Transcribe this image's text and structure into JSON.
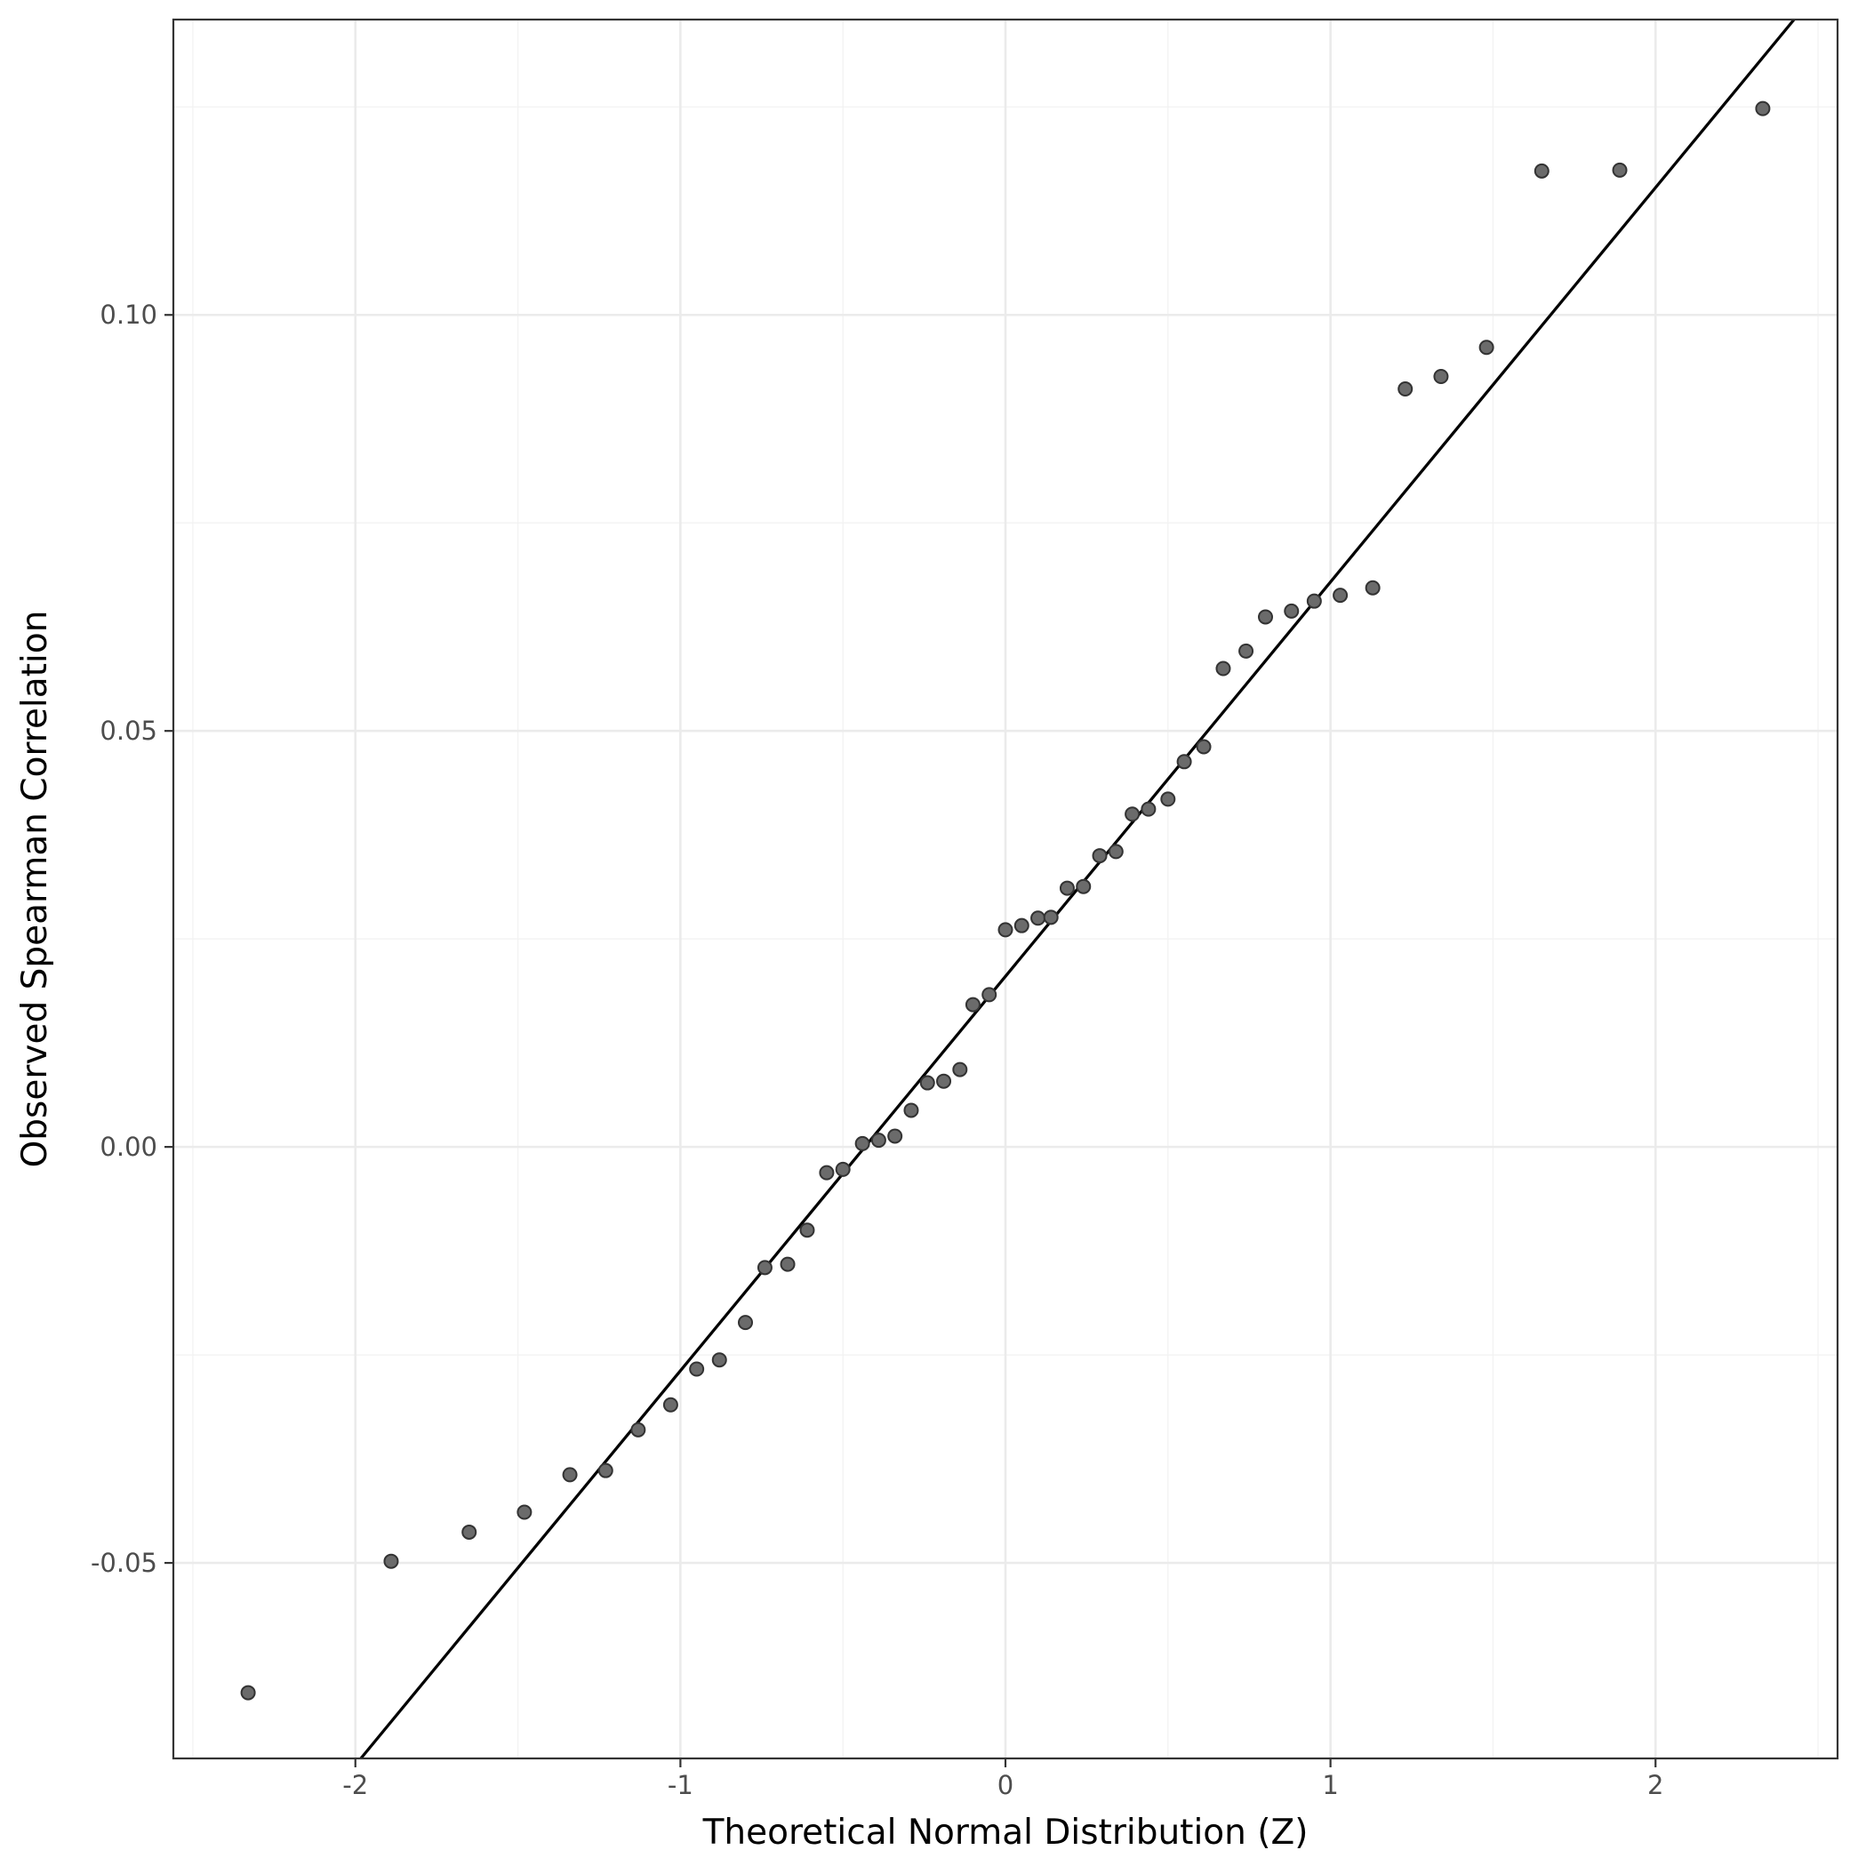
{
  "chart_data": {
    "type": "scatter",
    "title": "",
    "xlabel": "Theoretical Normal Distribution (Z)",
    "ylabel": "Observed Spearman Correlation",
    "xlim": [
      -2.56,
      2.56
    ],
    "ylim": [
      -0.0735,
      0.1355
    ],
    "x_ticks": [
      -2,
      -1,
      0,
      1,
      2
    ],
    "x_tick_labels": [
      "-2",
      "-1",
      "0",
      "1",
      "2"
    ],
    "y_ticks": [
      -0.05,
      0.0,
      0.05,
      0.1
    ],
    "y_tick_labels": [
      "-0.05",
      "0.00",
      "0.05",
      "0.10"
    ],
    "grid": true,
    "legend": "none",
    "reference_line": {
      "intercept": 0.0205,
      "slope": 0.0474
    },
    "point_color": "#6b6b6b",
    "line_color": "#000000",
    "points": [
      {
        "x": -2.33,
        "y": -0.0656
      },
      {
        "x": -1.89,
        "y": -0.0498
      },
      {
        "x": -1.65,
        "y": -0.0463
      },
      {
        "x": -1.48,
        "y": -0.0439
      },
      {
        "x": -1.34,
        "y": -0.0394
      },
      {
        "x": -1.23,
        "y": -0.0389
      },
      {
        "x": -1.13,
        "y": -0.034
      },
      {
        "x": -1.03,
        "y": -0.031
      },
      {
        "x": -0.95,
        "y": -0.0267
      },
      {
        "x": -0.88,
        "y": -0.0256
      },
      {
        "x": -0.8,
        "y": -0.0211
      },
      {
        "x": -0.74,
        "y": -0.0145
      },
      {
        "x": -0.67,
        "y": -0.0141
      },
      {
        "x": -0.61,
        "y": -0.01
      },
      {
        "x": -0.55,
        "y": -0.0031
      },
      {
        "x": -0.5,
        "y": -0.0027
      },
      {
        "x": -0.44,
        "y": 0.0004
      },
      {
        "x": -0.39,
        "y": 0.0008
      },
      {
        "x": -0.34,
        "y": 0.0013
      },
      {
        "x": -0.29,
        "y": 0.0044
      },
      {
        "x": -0.24,
        "y": 0.0077
      },
      {
        "x": -0.19,
        "y": 0.0079
      },
      {
        "x": -0.14,
        "y": 0.0093
      },
      {
        "x": -0.1,
        "y": 0.0171
      },
      {
        "x": -0.05,
        "y": 0.0183
      },
      {
        "x": 0.0,
        "y": 0.0261
      },
      {
        "x": 0.05,
        "y": 0.0266
      },
      {
        "x": 0.1,
        "y": 0.0275
      },
      {
        "x": 0.14,
        "y": 0.0276
      },
      {
        "x": 0.19,
        "y": 0.0311
      },
      {
        "x": 0.24,
        "y": 0.0313
      },
      {
        "x": 0.29,
        "y": 0.035
      },
      {
        "x": 0.34,
        "y": 0.0355
      },
      {
        "x": 0.39,
        "y": 0.04
      },
      {
        "x": 0.44,
        "y": 0.0406
      },
      {
        "x": 0.5,
        "y": 0.0418
      },
      {
        "x": 0.55,
        "y": 0.0463
      },
      {
        "x": 0.61,
        "y": 0.0481
      },
      {
        "x": 0.67,
        "y": 0.0575
      },
      {
        "x": 0.74,
        "y": 0.0596
      },
      {
        "x": 0.8,
        "y": 0.0637
      },
      {
        "x": 0.88,
        "y": 0.0644
      },
      {
        "x": 0.95,
        "y": 0.0656
      },
      {
        "x": 1.03,
        "y": 0.0663
      },
      {
        "x": 1.13,
        "y": 0.0672
      },
      {
        "x": 1.23,
        "y": 0.0911
      },
      {
        "x": 1.34,
        "y": 0.0926
      },
      {
        "x": 1.48,
        "y": 0.0961
      },
      {
        "x": 1.65,
        "y": 0.1173
      },
      {
        "x": 1.89,
        "y": 0.1174
      },
      {
        "x": 2.33,
        "y": 0.1248
      }
    ]
  }
}
